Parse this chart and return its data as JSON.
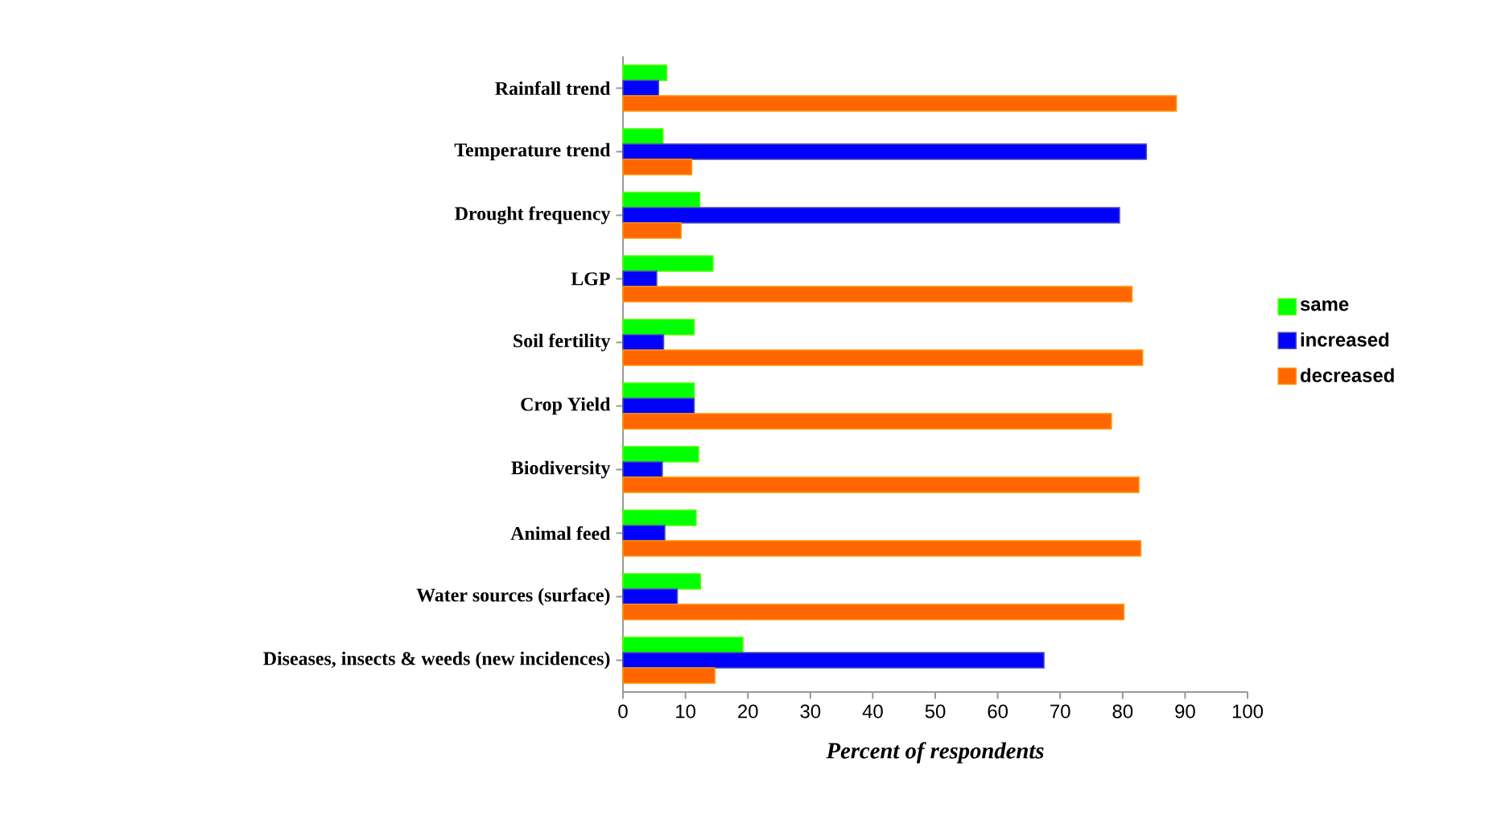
{
  "chart_data": {
    "type": "bar",
    "orientation": "horizontal",
    "xlabel": "Percent of respondents",
    "categories": [
      "Rainfall trend",
      "Temperature trend",
      "Drought frequency",
      "LGP",
      "Soil fertility",
      "Crop Yield",
      "Biodiversity",
      "Animal feed",
      "Water sources (surface)",
      "Diseases, insects & weeds (new incidences)"
    ],
    "series": [
      {
        "name": "same",
        "color": "#00ff00",
        "values": [
          7.0,
          6.4,
          12.3,
          14.4,
          11.4,
          11.4,
          12.1,
          11.7,
          12.4,
          19.2
        ]
      },
      {
        "name": "increased",
        "color": "#0000ff",
        "values": [
          5.7,
          83.8,
          79.5,
          5.4,
          6.5,
          11.4,
          6.3,
          6.7,
          8.7,
          67.4
        ]
      },
      {
        "name": "decreased",
        "color": "#ff6600",
        "values": [
          88.6,
          11.0,
          9.3,
          81.5,
          83.2,
          78.2,
          82.6,
          82.9,
          80.2,
          14.7
        ]
      }
    ],
    "xlim": [
      0,
      100
    ],
    "xticks": [
      0,
      10,
      20,
      30,
      40,
      50,
      60,
      70,
      80,
      90,
      100
    ],
    "grid": false,
    "legend": "right"
  }
}
